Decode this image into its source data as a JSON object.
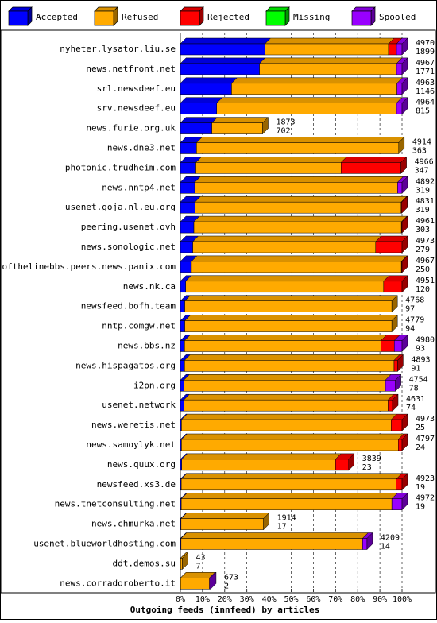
{
  "chart_data": {
    "type": "bar",
    "orientation": "horizontal",
    "stacked": true,
    "title": "",
    "xlabel": "Outgoing feeds (innfeed) by articles",
    "ylabel": "",
    "xlim": [
      0,
      100
    ],
    "x_ticks": [
      "0%",
      "10%",
      "20%",
      "30%",
      "40%",
      "50%",
      "60%",
      "70%",
      "80%",
      "90%",
      "100%"
    ],
    "grid": "vertical dashed",
    "legend_position": "top",
    "legend": [
      {
        "name": "Accepted",
        "color": "#0000ff"
      },
      {
        "name": "Refused",
        "color": "#ffaa00"
      },
      {
        "name": "Rejected",
        "color": "#ff0000"
      },
      {
        "name": "Missing",
        "color": "#00ff00"
      },
      {
        "name": "Spooled",
        "color": "#9900ff"
      }
    ],
    "rows": [
      {
        "host": "nyheter.lysator.liu.se",
        "offered": "4970",
        "accepted": "1899",
        "pct": [
          38.2,
          55.7,
          3.6,
          0,
          2.5
        ]
      },
      {
        "host": "news.netfront.net",
        "offered": "4967",
        "accepted": "1771",
        "pct": [
          35.7,
          61.8,
          0,
          0,
          2.5
        ]
      },
      {
        "host": "srl.newsdeef.eu",
        "offered": "4963",
        "accepted": "1146",
        "pct": [
          23.1,
          74.6,
          0,
          0,
          2.3
        ]
      },
      {
        "host": "srv.newsdeef.eu",
        "offered": "4964",
        "accepted": "815",
        "pct": [
          16.4,
          81.1,
          0,
          0,
          2.5
        ]
      },
      {
        "host": "news.furie.org.uk",
        "offered": "1873",
        "accepted": "702",
        "pct": [
          14.2,
          22.9,
          0,
          0,
          0
        ]
      },
      {
        "host": "news.dne3.net",
        "offered": "4914",
        "accepted": "363",
        "pct": [
          7.3,
          91.2,
          0,
          0,
          0
        ]
      },
      {
        "host": "photonic.trudheim.com",
        "offered": "4966",
        "accepted": "347",
        "pct": [
          7.0,
          65.5,
          27.0,
          0,
          0
        ]
      },
      {
        "host": "news.nntp4.net",
        "offered": "4892",
        "accepted": "319",
        "pct": [
          6.5,
          91.5,
          0,
          0,
          2.0
        ]
      },
      {
        "host": "usenet.goja.nl.eu.org",
        "offered": "4831",
        "accepted": "319",
        "pct": [
          6.6,
          93.0,
          0.3,
          0,
          0
        ]
      },
      {
        "host": "peering.usenet.ovh",
        "offered": "4961",
        "accepted": "303",
        "pct": [
          6.1,
          93.6,
          0.3,
          0,
          0
        ]
      },
      {
        "host": "news.sonologic.net",
        "offered": "4973",
        "accepted": "279",
        "pct": [
          5.6,
          82.5,
          11.9,
          0,
          0
        ]
      },
      {
        "host": "endofthelinebbs.peers.news.panix.com",
        "offered": "4967",
        "accepted": "250",
        "pct": [
          5.0,
          94.7,
          0.3,
          0,
          0
        ]
      },
      {
        "host": "news.nk.ca",
        "offered": "4951",
        "accepted": "120",
        "pct": [
          2.4,
          89.3,
          8.3,
          0,
          0
        ]
      },
      {
        "host": "newsfeed.bofh.team",
        "offered": "4768",
        "accepted": "97",
        "pct": [
          2.0,
          93.4,
          0,
          0,
          0
        ]
      },
      {
        "host": "nntp.comgw.net",
        "offered": "4779",
        "accepted": "94",
        "pct": [
          2.0,
          93.4,
          0,
          0,
          0
        ]
      },
      {
        "host": "news.bbs.nz",
        "offered": "4980",
        "accepted": "93",
        "pct": [
          1.9,
          88.6,
          6.0,
          0,
          3.5
        ]
      },
      {
        "host": "news.hispagatos.org",
        "offered": "4893",
        "accepted": "91",
        "pct": [
          1.9,
          94.5,
          1.6,
          0,
          0
        ]
      },
      {
        "host": "i2pn.org",
        "offered": "4754",
        "accepted": "78",
        "pct": [
          1.6,
          90.9,
          0,
          0,
          4.5
        ]
      },
      {
        "host": "usenet.network",
        "offered": "4631",
        "accepted": "74",
        "pct": [
          1.6,
          92.1,
          2.0,
          0,
          0
        ]
      },
      {
        "host": "news.weretis.net",
        "offered": "4973",
        "accepted": "25",
        "pct": [
          0.5,
          94.6,
          4.9,
          0,
          0
        ]
      },
      {
        "host": "news.samoylyk.net",
        "offered": "4797",
        "accepted": "24",
        "pct": [
          0.5,
          97.8,
          1.7,
          0,
          0
        ]
      },
      {
        "host": "news.quux.org",
        "offered": "3839",
        "accepted": "23",
        "pct": [
          0.6,
          69.4,
          5.9,
          0,
          0
        ]
      },
      {
        "host": "newsfeed.xs3.de",
        "offered": "4923",
        "accepted": "19",
        "pct": [
          0.4,
          97.0,
          2.6,
          0,
          0
        ]
      },
      {
        "host": "news.tnetconsulting.net",
        "offered": "4972",
        "accepted": "19",
        "pct": [
          0.4,
          95.0,
          0,
          0,
          4.6
        ]
      },
      {
        "host": "news.chmurka.net",
        "offered": "1914",
        "accepted": "17",
        "pct": [
          0.3,
          37.2,
          0,
          0,
          0
        ]
      },
      {
        "host": "usenet.blueworldhosting.com",
        "offered": "4209",
        "accepted": "14",
        "pct": [
          0.3,
          81.9,
          0,
          0,
          2.0
        ]
      },
      {
        "host": "ddt.demos.su",
        "offered": "43",
        "accepted": "7",
        "pct": [
          0.1,
          0.8,
          0,
          0,
          0
        ]
      },
      {
        "host": "news.corradoroberto.it",
        "offered": "673",
        "accepted": "2",
        "pct": [
          0.1,
          13.0,
          0,
          0,
          0.5
        ]
      }
    ]
  }
}
